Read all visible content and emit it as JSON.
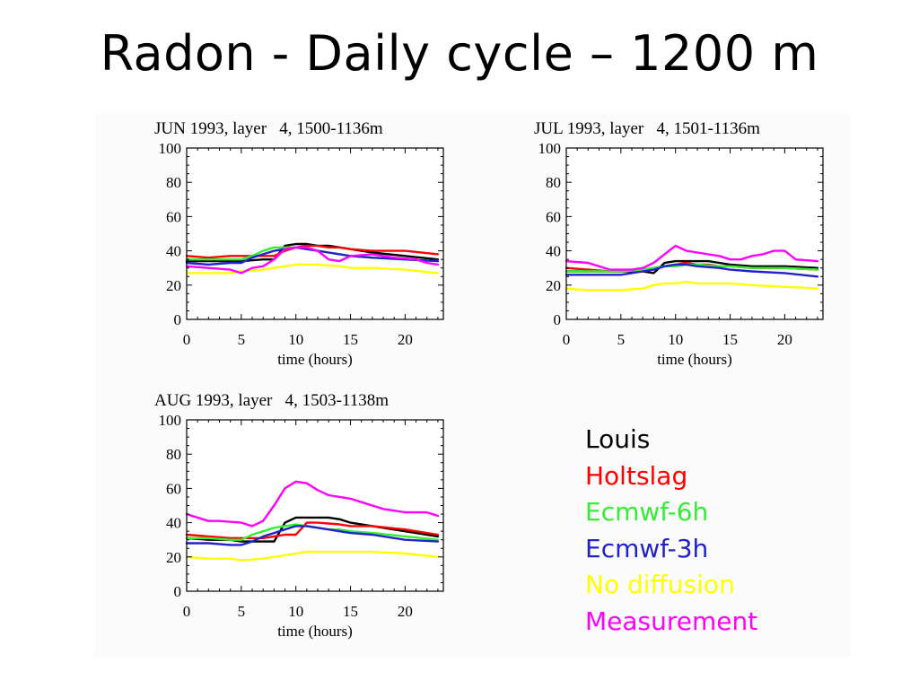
{
  "slide": {
    "title": "Radon - Daily cycle – 1200 m"
  },
  "legend": {
    "items": [
      {
        "label": "Louis",
        "color": "#000000"
      },
      {
        "label": "Holtslag",
        "color": "#ff0000"
      },
      {
        "label": "Ecmwf-6h",
        "color": "#33ee33"
      },
      {
        "label": "Ecmwf-3h",
        "color": "#2222cc"
      },
      {
        "label": "No diffusion",
        "color": "#ffff00"
      },
      {
        "label": "Measurement",
        "color": "#ff00ff"
      }
    ]
  },
  "chart_data": [
    {
      "type": "line",
      "title": "JUN 1993, layer   4, 1500-1136m",
      "xlabel": "time (hours)",
      "ylabel": "",
      "xlim": [
        0,
        23.5
      ],
      "ylim": [
        0,
        100
      ],
      "xticks": [
        0,
        5,
        10,
        15,
        20
      ],
      "yticks": [
        0,
        20,
        40,
        60,
        80,
        100
      ],
      "series": [
        {
          "color": "#000000",
          "x": [
            0,
            2,
            4,
            5,
            7,
            8,
            9,
            10,
            11,
            12,
            13,
            14,
            15,
            17,
            20,
            23
          ],
          "y": [
            34,
            34,
            34,
            34,
            35,
            35,
            43,
            44,
            44,
            43,
            43,
            42,
            41,
            39,
            37,
            35
          ]
        },
        {
          "color": "#ff0000",
          "x": [
            0,
            2,
            4,
            5,
            7,
            8,
            9,
            10,
            11,
            12,
            13,
            14,
            15,
            17,
            20,
            23
          ],
          "y": [
            37,
            36,
            37,
            37,
            37,
            37,
            40,
            42,
            43,
            43,
            42,
            42,
            41,
            40,
            40,
            38
          ]
        },
        {
          "color": "#33ee33",
          "x": [
            0,
            2,
            4,
            5,
            6,
            7,
            8,
            9,
            10,
            11,
            12,
            13,
            14,
            15,
            17,
            20,
            23
          ],
          "y": [
            35,
            35,
            35,
            35,
            37,
            40,
            42,
            42,
            42,
            41,
            40,
            39,
            38,
            37,
            36,
            35,
            34
          ]
        },
        {
          "color": "#2222cc",
          "x": [
            0,
            2,
            4,
            5,
            6,
            7,
            8,
            9,
            10,
            11,
            12,
            13,
            14,
            15,
            17,
            20,
            23
          ],
          "y": [
            33,
            32,
            33,
            33,
            36,
            38,
            40,
            41,
            42,
            41,
            40,
            39,
            38,
            37,
            36,
            35,
            34
          ]
        },
        {
          "color": "#ffff00",
          "x": [
            0,
            2,
            4,
            5,
            7,
            8,
            9,
            10,
            11,
            12,
            14,
            15,
            17,
            20,
            23
          ],
          "y": [
            27,
            27,
            27,
            28,
            29,
            30,
            31,
            32,
            32,
            32,
            31,
            30,
            30,
            29,
            27
          ]
        },
        {
          "color": "#ff00ff",
          "x": [
            0,
            2,
            4,
            5,
            6,
            7,
            8,
            9,
            10,
            11,
            12,
            13,
            14,
            15,
            17,
            19,
            21,
            22,
            23
          ],
          "y": [
            31,
            30,
            29,
            27,
            30,
            31,
            35,
            41,
            42,
            42,
            40,
            35,
            34,
            37,
            38,
            36,
            35,
            33,
            32
          ]
        }
      ]
    },
    {
      "type": "line",
      "title": "JUL 1993, layer   4, 1501-1136m",
      "xlabel": "time (hours)",
      "ylabel": "",
      "xlim": [
        0,
        23.5
      ],
      "ylim": [
        0,
        100
      ],
      "xticks": [
        0,
        5,
        10,
        15,
        20
      ],
      "yticks": [
        0,
        20,
        40,
        60,
        80,
        100
      ],
      "series": [
        {
          "color": "#000000",
          "x": [
            0,
            2,
            4,
            5,
            7,
            8,
            9,
            10,
            11,
            12,
            13,
            14,
            15,
            17,
            20,
            23
          ],
          "y": [
            28,
            28,
            28,
            28,
            28,
            27,
            33,
            34,
            34,
            34,
            34,
            33,
            32,
            31,
            31,
            30
          ]
        },
        {
          "color": "#ff0000",
          "x": [
            0,
            2,
            4,
            5,
            7,
            8,
            9,
            10,
            11,
            12,
            13,
            14,
            15,
            17,
            20,
            23
          ],
          "y": [
            30,
            29,
            28,
            28,
            29,
            30,
            31,
            32,
            33,
            32,
            32,
            31,
            31,
            30,
            30,
            29
          ]
        },
        {
          "color": "#33ee33",
          "x": [
            0,
            2,
            4,
            5,
            7,
            8,
            9,
            10,
            11,
            12,
            14,
            15,
            17,
            20,
            23
          ],
          "y": [
            28,
            28,
            28,
            28,
            29,
            30,
            31,
            31,
            32,
            32,
            31,
            31,
            30,
            30,
            29
          ]
        },
        {
          "color": "#2222cc",
          "x": [
            0,
            2,
            4,
            5,
            7,
            8,
            9,
            10,
            11,
            12,
            14,
            15,
            17,
            20,
            23
          ],
          "y": [
            26,
            26,
            26,
            26,
            28,
            29,
            31,
            32,
            32,
            31,
            30,
            29,
            28,
            27,
            25
          ]
        },
        {
          "color": "#ffff00",
          "x": [
            0,
            2,
            4,
            5,
            7,
            8,
            9,
            10,
            11,
            12,
            14,
            15,
            17,
            20,
            23
          ],
          "y": [
            18,
            17,
            17,
            17,
            18,
            20,
            21,
            21,
            22,
            21,
            21,
            21,
            20,
            19,
            18
          ]
        },
        {
          "color": "#ff00ff",
          "x": [
            0,
            2,
            4,
            5,
            6,
            7,
            8,
            9,
            10,
            11,
            12,
            13,
            14,
            15,
            16,
            17,
            18,
            19,
            20,
            21,
            23
          ],
          "y": [
            34,
            33,
            29,
            29,
            29,
            30,
            33,
            38,
            43,
            40,
            39,
            38,
            37,
            35,
            35,
            37,
            38,
            40,
            40,
            35,
            34
          ]
        }
      ]
    },
    {
      "type": "line",
      "title": "AUG 1993, layer   4, 1503-1138m",
      "xlabel": "time (hours)",
      "ylabel": "",
      "xlim": [
        0,
        23.5
      ],
      "ylim": [
        0,
        100
      ],
      "xticks": [
        0,
        5,
        10,
        15,
        20
      ],
      "yticks": [
        0,
        20,
        40,
        60,
        80,
        100
      ],
      "series": [
        {
          "color": "#000000",
          "x": [
            0,
            2,
            4,
            5,
            6,
            7,
            8,
            9,
            10,
            11,
            12,
            13,
            14,
            15,
            17,
            20,
            23
          ],
          "y": [
            31,
            30,
            30,
            29,
            29,
            29,
            29,
            40,
            43,
            43,
            43,
            43,
            42,
            40,
            38,
            35,
            32
          ]
        },
        {
          "color": "#ff0000",
          "x": [
            0,
            2,
            4,
            5,
            7,
            8,
            9,
            10,
            11,
            12,
            14,
            15,
            17,
            20,
            23
          ],
          "y": [
            33,
            32,
            31,
            31,
            31,
            32,
            33,
            33,
            40,
            40,
            39,
            38,
            38,
            36,
            33
          ]
        },
        {
          "color": "#33ee33",
          "x": [
            0,
            2,
            4,
            5,
            6,
            7,
            8,
            9,
            10,
            11,
            12,
            13,
            14,
            15,
            17,
            20,
            23
          ],
          "y": [
            31,
            31,
            30,
            30,
            33,
            35,
            37,
            38,
            39,
            38,
            37,
            36,
            36,
            35,
            34,
            32,
            30
          ]
        },
        {
          "color": "#2222cc",
          "x": [
            0,
            2,
            4,
            5,
            6,
            7,
            8,
            9,
            10,
            11,
            12,
            13,
            14,
            15,
            17,
            20,
            23
          ],
          "y": [
            28,
            28,
            27,
            27,
            29,
            32,
            34,
            36,
            38,
            38,
            37,
            36,
            35,
            34,
            33,
            30,
            29
          ]
        },
        {
          "color": "#ffff00",
          "x": [
            0,
            2,
            4,
            5,
            7,
            8,
            9,
            10,
            11,
            12,
            14,
            15,
            17,
            20,
            23
          ],
          "y": [
            20,
            19,
            19,
            18,
            19,
            20,
            21,
            22,
            23,
            23,
            23,
            23,
            23,
            22,
            20
          ]
        },
        {
          "color": "#ff00ff",
          "x": [
            0,
            2,
            3,
            5,
            6,
            7,
            8,
            9,
            10,
            11,
            12,
            13,
            14,
            15,
            16,
            17,
            18,
            19,
            20,
            21,
            22,
            23
          ],
          "y": [
            45,
            41,
            41,
            40,
            38,
            41,
            50,
            60,
            64,
            63,
            59,
            56,
            55,
            54,
            52,
            50,
            48,
            47,
            46,
            46,
            46,
            44
          ]
        }
      ]
    }
  ]
}
